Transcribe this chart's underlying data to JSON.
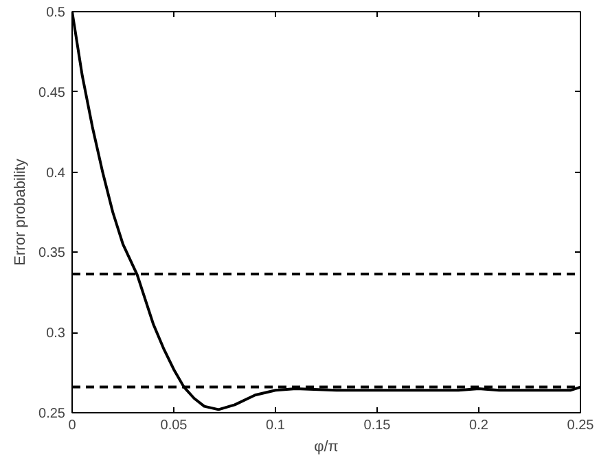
{
  "chart_data": {
    "type": "line",
    "xlabel": "φ/π",
    "ylabel": "Error probability",
    "x": [
      0,
      0.005,
      0.01,
      0.015,
      0.02,
      0.025,
      0.032,
      0.04,
      0.045,
      0.05,
      0.055,
      0.06,
      0.065,
      0.072,
      0.08,
      0.09,
      0.1,
      0.11,
      0.13,
      0.15,
      0.17,
      0.19,
      0.2,
      0.21,
      0.23,
      0.245,
      0.25
    ],
    "series": [
      {
        "color": "#000000",
        "values": [
          0.5,
          0.46,
          0.428,
          0.4,
          0.375,
          0.355,
          0.336,
          0.305,
          0.29,
          0.277,
          0.266,
          0.259,
          0.254,
          0.252,
          0.255,
          0.261,
          0.264,
          0.265,
          0.264,
          0.264,
          0.264,
          0.264,
          0.265,
          0.264,
          0.264,
          0.264,
          0.266
        ]
      }
    ],
    "xlim": [
      0,
      0.25
    ],
    "ylim": [
      0.25,
      0.5
    ],
    "xticks": [
      0,
      0.05,
      0.1,
      0.15,
      0.2,
      0.25
    ],
    "yticks": [
      0.25,
      0.3,
      0.35,
      0.4,
      0.45,
      0.5
    ],
    "ref_lines": [
      {
        "axis": "y",
        "value": 0.3365,
        "color": "#000000",
        "line_style": "dashed"
      },
      {
        "axis": "y",
        "value": 0.266,
        "color": "#000000",
        "line_style": "dashed"
      }
    ],
    "grid": false,
    "marker": "none",
    "line_style": "solid"
  }
}
